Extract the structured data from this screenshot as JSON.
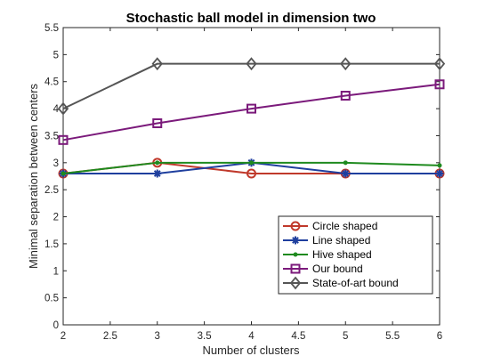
{
  "chart_data": {
    "type": "line",
    "title": "Stochastic ball model in dimension two",
    "xlabel": "Number of clusters",
    "ylabel": "Minimal separation between centers",
    "xlim": [
      2,
      6
    ],
    "ylim": [
      0,
      5.5
    ],
    "x_ticks": [
      "2",
      "2.5",
      "3",
      "3.5",
      "4",
      "4.5",
      "5",
      "5.5",
      "6"
    ],
    "y_ticks": [
      "0",
      "0.5",
      "1",
      "1.5",
      "2",
      "2.5",
      "3",
      "3.5",
      "4",
      "4.5",
      "5",
      "5.5"
    ],
    "grid": false,
    "legend_position": "lower-right",
    "x": [
      2,
      3,
      4,
      5,
      6
    ],
    "series": [
      {
        "name": "Circle shaped",
        "values": [
          2.8,
          3.0,
          2.8,
          2.8,
          2.8
        ],
        "color": "#c0392b",
        "marker": "circle"
      },
      {
        "name": "Line shaped",
        "values": [
          2.8,
          2.8,
          3.0,
          2.8,
          2.8
        ],
        "color": "#1f3f9e",
        "marker": "asterisk"
      },
      {
        "name": "Hive shaped",
        "values": [
          2.8,
          3.0,
          3.0,
          3.0,
          2.95
        ],
        "color": "#1e8a1e",
        "marker": "dot"
      },
      {
        "name": "Our bound",
        "values": [
          3.42,
          3.73,
          4.0,
          4.24,
          4.45
        ],
        "color": "#7b1a7b",
        "marker": "square"
      },
      {
        "name": "State-of-art bound",
        "values": [
          4.0,
          4.83,
          4.83,
          4.83,
          4.83
        ],
        "color": "#555555",
        "marker": "diamond"
      }
    ]
  }
}
